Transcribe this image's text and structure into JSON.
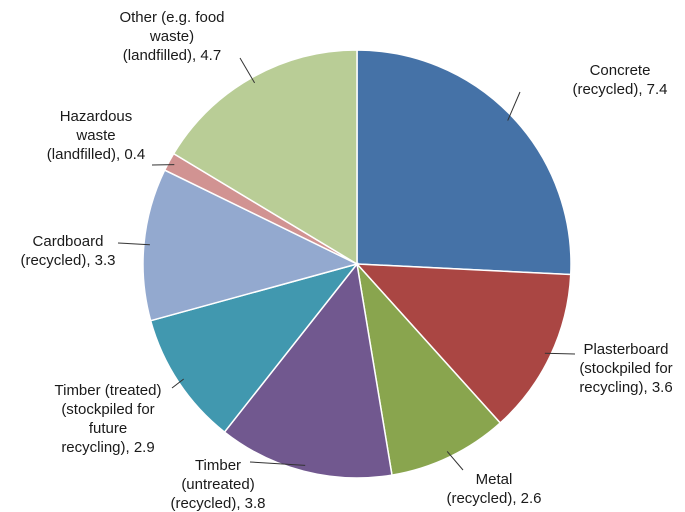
{
  "chart_data": {
    "type": "pie",
    "title": "",
    "start_angle": "12 o'clock",
    "direction": "clockwise",
    "slices": [
      {
        "label": [
          "Concrete",
          "(recycled), 7.4"
        ],
        "value": 7.4,
        "color": "#4572a7"
      },
      {
        "label": [
          "Plasterboard",
          "(stockpiled for",
          "recycling), 3.6"
        ],
        "value": 3.6,
        "color": "#aa4643"
      },
      {
        "label": [
          "Metal",
          "(recycled), 2.6"
        ],
        "value": 2.6,
        "color": "#89a54e"
      },
      {
        "label": [
          "Timber",
          "(untreated)",
          "(recycled), 3.8"
        ],
        "value": 3.8,
        "color": "#71588f"
      },
      {
        "label": [
          "Timber (treated)",
          "(stockpiled for",
          "future",
          "recycling), 2.9"
        ],
        "value": 2.9,
        "color": "#4198af"
      },
      {
        "label": [
          "Cardboard",
          "(recycled), 3.3"
        ],
        "value": 3.3,
        "color": "#93a9cf"
      },
      {
        "label": [
          "Hazardous",
          "waste",
          "(landfilled), 0.4"
        ],
        "value": 0.4,
        "color": "#d19392"
      },
      {
        "label": [
          "Other (e.g. food",
          "waste)",
          "(landfilled), 4.7"
        ],
        "value": 4.7,
        "color": "#b9cd96"
      }
    ]
  }
}
